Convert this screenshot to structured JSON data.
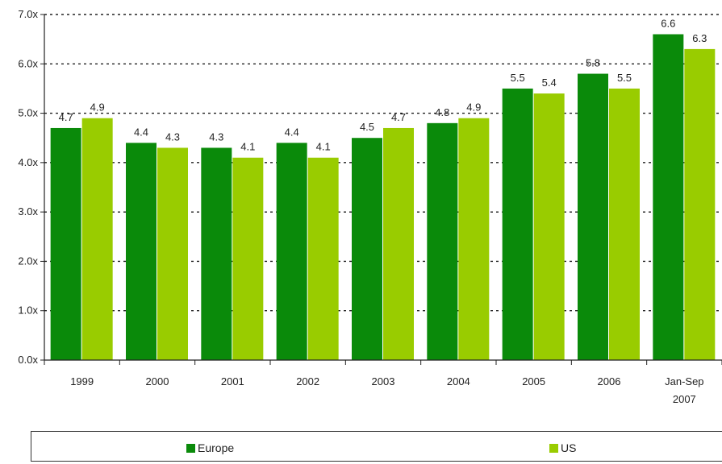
{
  "chart_data": {
    "type": "bar",
    "categories": [
      [
        "1999"
      ],
      [
        "2000"
      ],
      [
        "2001"
      ],
      [
        "2002"
      ],
      [
        "2003"
      ],
      [
        "2004"
      ],
      [
        "2005"
      ],
      [
        "2006"
      ],
      [
        "Jan-Sep",
        "2007"
      ]
    ],
    "series": [
      {
        "name": "Europe",
        "color": "#0a8a0a",
        "values": [
          4.7,
          4.4,
          4.3,
          4.4,
          4.5,
          4.8,
          5.5,
          5.8,
          6.6
        ],
        "labels": [
          "4.7",
          "4.4",
          "4.3",
          "4.4",
          "4.5",
          "4.8",
          "5.5",
          "5.8",
          "6.6"
        ]
      },
      {
        "name": "US",
        "color": "#99cc00",
        "values": [
          4.9,
          4.3,
          4.1,
          4.1,
          4.7,
          4.9,
          5.4,
          5.5,
          6.3
        ],
        "labels": [
          "4.9",
          "4.3",
          "4.1",
          "4.1",
          "4.7",
          "4.9",
          "5.4",
          "5.5",
          "6.3"
        ]
      }
    ],
    "yticks": [
      "0.0x",
      "1.0x",
      "2.0x",
      "3.0x",
      "4.0x",
      "5.0x",
      "6.0x",
      "7.0x"
    ],
    "ylim": [
      0,
      7
    ],
    "grid": "dotted horizontal",
    "legend_position": "bottom"
  }
}
